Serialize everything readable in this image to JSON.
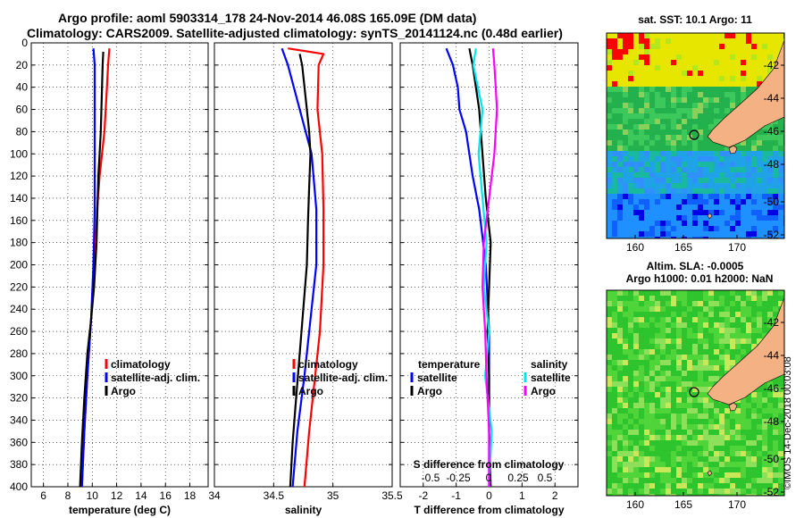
{
  "header": {
    "title_line1": "Argo profile: aoml 5903314_178 24-Nov-2014 46.08S 165.09E (DM data)",
    "title_line2": "Climatology: CARS2009. Satellite-adjusted climatology: synTS_20141124.nc (0.48d earlier)"
  },
  "colors": {
    "climatology": "#ff0000",
    "satellite": "#0000ff",
    "argo": "#000000",
    "sat_salinity": "#00e5ee",
    "argo_salinity": "#ff00ff",
    "land": "#f4b183"
  },
  "chart_data": [
    {
      "type": "line",
      "name": "temperature-panel",
      "xlabel": "temperature (deg C)",
      "xlim": [
        5,
        19.5
      ],
      "xticks": [
        6,
        8,
        10,
        12,
        14,
        16,
        18
      ],
      "ylim": [
        0,
        400
      ],
      "yticks": [
        0,
        20,
        40,
        60,
        80,
        100,
        120,
        140,
        160,
        180,
        200,
        220,
        240,
        260,
        280,
        300,
        320,
        340,
        360,
        380,
        400
      ],
      "legend": [
        "climatology",
        "satellite-adj. clim.",
        "Argo"
      ],
      "series": [
        {
          "name": "climatology",
          "color": "#ff0000",
          "depth": [
            5,
            20,
            40,
            60,
            80,
            100,
            120,
            150,
            200,
            250,
            300,
            350,
            400
          ],
          "values": [
            11.4,
            11.3,
            11.2,
            11.1,
            11.0,
            10.8,
            10.6,
            10.4,
            10.2,
            9.9,
            9.6,
            9.35,
            9.15
          ]
        },
        {
          "name": "satellite-adj. clim.",
          "color": "#0000ff",
          "depth": [
            5,
            20,
            60,
            100,
            150,
            200,
            250,
            300,
            350,
            400
          ],
          "values": [
            10.1,
            10.2,
            10.2,
            10.2,
            10.2,
            10.1,
            9.9,
            9.6,
            9.35,
            9.15
          ]
        },
        {
          "name": "Argo",
          "color": "#000000",
          "depth": [
            8,
            20,
            40,
            60,
            80,
            100,
            120,
            140,
            160,
            180,
            200,
            220,
            250,
            280,
            320,
            360,
            400
          ],
          "values": [
            10.9,
            10.85,
            10.8,
            10.75,
            10.7,
            10.6,
            10.5,
            10.45,
            10.4,
            10.35,
            10.25,
            10.15,
            9.9,
            9.6,
            9.35,
            9.15,
            9.0
          ]
        }
      ]
    },
    {
      "type": "line",
      "name": "salinity-panel",
      "xlabel": "salinity",
      "xlim": [
        34,
        35.5
      ],
      "xticks": [
        34,
        34.5,
        35,
        35.5
      ],
      "ylim": [
        0,
        400
      ],
      "legend": [
        "climatology",
        "satellite-adj. clim.",
        "Argo"
      ],
      "series": [
        {
          "name": "climatology",
          "color": "#ff0000",
          "depth": [
            5,
            10,
            20,
            60,
            100,
            150,
            200,
            260,
            300,
            350,
            400
          ],
          "values": [
            34.62,
            34.92,
            34.88,
            34.87,
            34.91,
            34.92,
            34.92,
            34.89,
            34.85,
            34.8,
            34.76
          ]
        },
        {
          "name": "satellite-adj. clim.",
          "color": "#0000ff",
          "depth": [
            5,
            20,
            60,
            100,
            150,
            200,
            260,
            300,
            350,
            400
          ],
          "values": [
            34.57,
            34.62,
            34.72,
            34.82,
            34.86,
            34.86,
            34.8,
            34.76,
            34.7,
            34.66
          ]
        },
        {
          "name": "Argo",
          "color": "#000000",
          "depth": [
            10,
            20,
            50,
            80,
            100,
            130,
            160,
            200,
            240,
            280,
            320,
            360,
            400
          ],
          "values": [
            34.72,
            34.74,
            34.77,
            34.8,
            34.81,
            34.8,
            34.79,
            34.78,
            34.75,
            34.72,
            34.69,
            34.66,
            34.64
          ]
        }
      ]
    },
    {
      "type": "line",
      "name": "difference-panel",
      "xlabel": "T difference from climatology",
      "xlim": [
        -2.7,
        2.7
      ],
      "xticks": [
        -2,
        -1,
        0,
        1,
        2
      ],
      "secondary_xlabel": "S difference from climatology",
      "secondary_xticks": [
        "-0.5",
        "-0.25",
        "0",
        "0.25",
        "0.5"
      ],
      "ylim": [
        0,
        400
      ],
      "legend_temperature_title": "temperature",
      "legend_salinity_title": "salinity",
      "legend": [
        "satellite",
        "Argo",
        "satellite",
        "Argo"
      ],
      "series": [
        {
          "name": "temperature satellite",
          "color": "#0000ff",
          "depth": [
            5,
            20,
            40,
            60,
            80,
            100,
            120,
            150,
            200,
            260,
            300,
            350,
            400
          ],
          "values": [
            -1.3,
            -1.1,
            -0.95,
            -0.9,
            -0.7,
            -0.6,
            -0.5,
            -0.3,
            -0.1,
            0.0,
            0.0,
            0.0,
            0.0
          ]
        },
        {
          "name": "temperature Argo",
          "color": "#000000",
          "depth": [
            5,
            20,
            60,
            100,
            140,
            180,
            220,
            260,
            300,
            350,
            400
          ],
          "values": [
            -0.6,
            -0.5,
            -0.3,
            -0.2,
            -0.1,
            0.05,
            0.0,
            -0.05,
            0.0,
            0.0,
            0.05
          ]
        },
        {
          "name": "salinity satellite",
          "color": "#00e5ee",
          "depth": [
            5,
            20,
            60,
            100,
            140,
            180,
            220,
            260,
            300,
            350,
            400
          ],
          "values": [
            -0.1,
            -0.12,
            -0.05,
            -0.08,
            -0.05,
            -0.02,
            -0.04,
            0.0,
            -0.03,
            0.02,
            0.0
          ]
        },
        {
          "name": "salinity Argo",
          "color": "#ff00ff",
          "depth": [
            5,
            20,
            40,
            60,
            100,
            140,
            180,
            220,
            260,
            300,
            350,
            400
          ],
          "values": [
            0.03,
            0.04,
            0.05,
            0.06,
            0.04,
            0.0,
            -0.04,
            -0.05,
            -0.03,
            -0.02,
            0.0,
            0.0
          ]
        }
      ]
    }
  ],
  "maps": {
    "sst": {
      "title": "sat. SST: 10.1  Argo: 11",
      "lat_ticks": [
        "-42",
        "-44",
        "-46",
        "-48",
        "-50",
        "-52"
      ],
      "lon_ticks": [
        "160",
        "165",
        "170"
      ]
    },
    "sla": {
      "title_line1": "Altim. SLA: -0.0005",
      "title_line2": "Argo h1000: 0.01 h2000: NaN",
      "lat_ticks": [
        "-42",
        "-44",
        "-46",
        "-48",
        "-50",
        "-52"
      ],
      "lon_ticks": [
        "160",
        "165",
        "170"
      ]
    }
  },
  "credit": "©IMOS 14-Dec-2018 00:03:08"
}
